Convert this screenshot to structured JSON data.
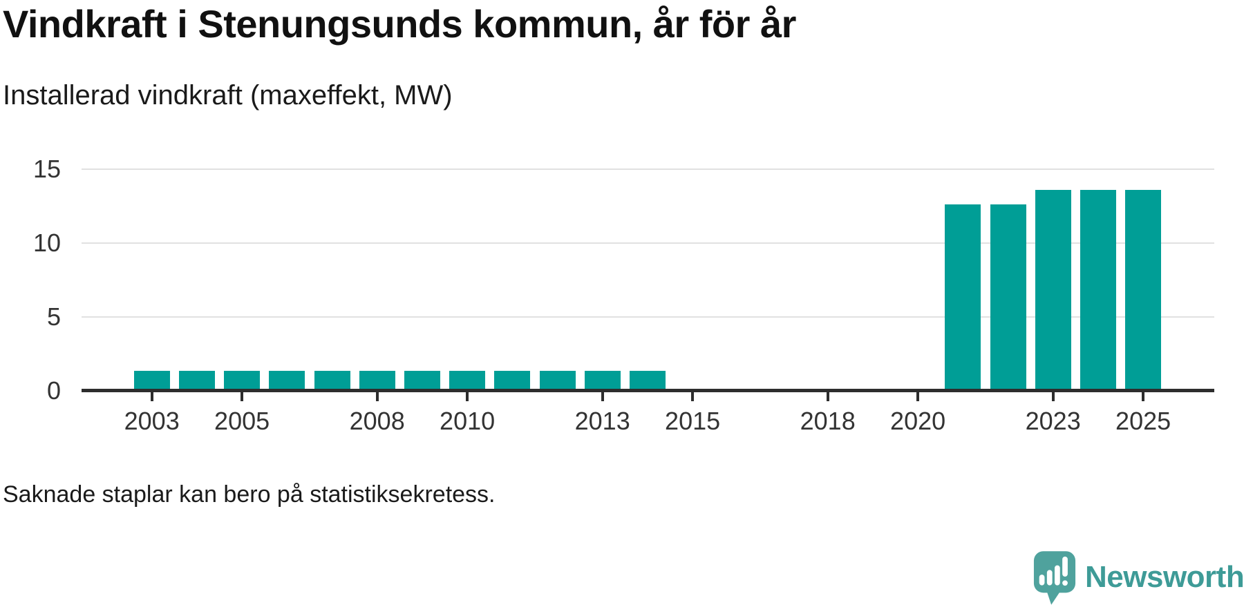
{
  "header": {
    "title": "Vindkraft i Stenungsunds kommun, år för år",
    "subtitle": "Installerad vindkraft (maxeffekt, MW)"
  },
  "chart_data": {
    "type": "bar",
    "title": "Vindkraft i Stenungsunds kommun, år för år",
    "subtitle": "Installerad vindkraft (maxeffekt, MW)",
    "xlabel": "",
    "ylabel": "Installerad vindkraft (maxeffekt, MW)",
    "categories": [
      "2003",
      "2004",
      "2005",
      "2006",
      "2007",
      "2008",
      "2009",
      "2010",
      "2011",
      "2012",
      "2013",
      "2014",
      "2015",
      "2016",
      "2017",
      "2018",
      "2019",
      "2020",
      "2021",
      "2022",
      "2023",
      "2024",
      "2025"
    ],
    "values": [
      1.2,
      1.2,
      1.2,
      1.2,
      1.2,
      1.2,
      1.2,
      1.2,
      1.2,
      1.2,
      1.2,
      1.2,
      null,
      null,
      null,
      null,
      null,
      null,
      12.5,
      12.5,
      13.5,
      13.5,
      13.5
    ],
    "x_tick_labels": [
      "2003",
      "2005",
      "2008",
      "2010",
      "2013",
      "2015",
      "2018",
      "2020",
      "2023",
      "2025"
    ],
    "y_ticks": [
      0,
      5,
      10,
      15
    ],
    "ylim": [
      0,
      15
    ],
    "grid": "horizontal-only",
    "legend": "none",
    "bar_color": "#009E96",
    "missing_years_note": "2015–2020 har inga staplar"
  },
  "footer": {
    "note": "Saknade staplar kan bero på statistiksekretess."
  },
  "branding": {
    "name": "Newsworthy",
    "icon": "newsworthy-speech-bubble-bar-chart-icon",
    "icon_color": "#4FA29D",
    "text_color": "#3E9B97"
  },
  "colors": {
    "bar": "#009E96",
    "axis": "#2d2d2d",
    "gridline": "#e1e1e1",
    "title_text": "#111111",
    "tick_text": "#333333"
  }
}
